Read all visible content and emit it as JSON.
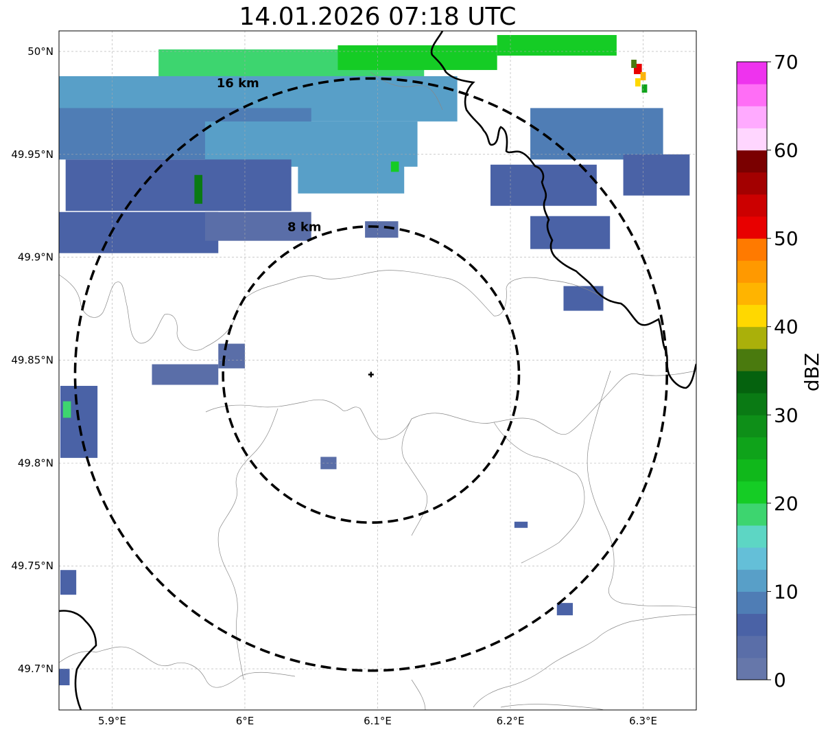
{
  "title": "14.01.2026 07:18 UTC",
  "map": {
    "lon_ticks": [
      "5.9°E",
      "6°E",
      "6.1°E",
      "6.2°E",
      "6.3°E"
    ],
    "lat_ticks": [
      "50°N",
      "49.95°N",
      "49.9°N",
      "49.85°N",
      "49.8°N",
      "49.75°N",
      "49.7°N"
    ],
    "lon_range": [
      5.86,
      6.34
    ],
    "lat_range": [
      49.68,
      50.01
    ],
    "radar_site": {
      "lon": 6.095,
      "lat": 49.843
    },
    "range_rings": [
      {
        "label": "8 km",
        "radius_km": 8
      },
      {
        "label": "16 km",
        "radius_km": 16
      }
    ]
  },
  "colorbar": {
    "label": "dBZ",
    "ticks": [
      "0",
      "10",
      "20",
      "30",
      "40",
      "50",
      "60",
      "70"
    ],
    "min": 0,
    "max": 70,
    "step": 2.5,
    "colors": [
      "#6677aa",
      "#5a6ea8",
      "#4a62a6",
      "#4f7db5",
      "#589fc8",
      "#64bfd8",
      "#5dd6c4",
      "#3dd56f",
      "#15cc25",
      "#10b81b",
      "#0fa31a",
      "#0e8f18",
      "#0a7a14",
      "#05620e",
      "#4a7a0e",
      "#aab00a",
      "#ffd800",
      "#ffb400",
      "#ff9900",
      "#ff7a00",
      "#e80000",
      "#cc0000",
      "#a30000",
      "#7a0000",
      "#ffd6ff",
      "#ffaaff",
      "#ff6ef6",
      "#ee33ee"
    ]
  },
  "echoes": [
    {
      "lon": 6.035,
      "lat": 49.993,
      "w": 0.2,
      "h": 0.016,
      "dbz": 18
    },
    {
      "lon": 6.13,
      "lat": 49.997,
      "w": 0.12,
      "h": 0.012,
      "dbz": 22
    },
    {
      "lon": 6.235,
      "lat": 50.003,
      "w": 0.09,
      "h": 0.01,
      "dbz": 21
    },
    {
      "lon": 6.0,
      "lat": 49.977,
      "w": 0.32,
      "h": 0.022,
      "dbz": 12
    },
    {
      "lon": 5.955,
      "lat": 49.96,
      "w": 0.19,
      "h": 0.025,
      "dbz": 8
    },
    {
      "lon": 6.05,
      "lat": 49.955,
      "w": 0.16,
      "h": 0.022,
      "dbz": 11
    },
    {
      "lon": 5.95,
      "lat": 49.935,
      "w": 0.17,
      "h": 0.025,
      "dbz": 6
    },
    {
      "lon": 6.08,
      "lat": 49.94,
      "w": 0.08,
      "h": 0.018,
      "dbz": 10
    },
    {
      "lon": 5.92,
      "lat": 49.912,
      "w": 0.12,
      "h": 0.02,
      "dbz": 5
    },
    {
      "lon": 6.01,
      "lat": 49.915,
      "w": 0.08,
      "h": 0.014,
      "dbz": 4
    },
    {
      "lon": 6.265,
      "lat": 49.96,
      "w": 0.1,
      "h": 0.025,
      "dbz": 9
    },
    {
      "lon": 6.225,
      "lat": 49.935,
      "w": 0.08,
      "h": 0.02,
      "dbz": 5
    },
    {
      "lon": 6.245,
      "lat": 49.912,
      "w": 0.06,
      "h": 0.016,
      "dbz": 5
    },
    {
      "lon": 6.255,
      "lat": 49.88,
      "w": 0.03,
      "h": 0.012,
      "dbz": 6
    },
    {
      "lon": 6.31,
      "lat": 49.94,
      "w": 0.05,
      "h": 0.02,
      "dbz": 6
    },
    {
      "lon": 5.955,
      "lat": 49.843,
      "w": 0.05,
      "h": 0.01,
      "dbz": 4
    },
    {
      "lon": 5.99,
      "lat": 49.852,
      "w": 0.02,
      "h": 0.012,
      "dbz": 4
    },
    {
      "lon": 5.875,
      "lat": 49.82,
      "w": 0.028,
      "h": 0.035,
      "dbz": 6
    },
    {
      "lon": 6.063,
      "lat": 49.8,
      "w": 0.012,
      "h": 0.006,
      "dbz": 4
    },
    {
      "lon": 6.103,
      "lat": 49.9135,
      "w": 0.025,
      "h": 0.008,
      "dbz": 4
    },
    {
      "lon": 6.241,
      "lat": 49.729,
      "w": 0.012,
      "h": 0.006,
      "dbz": 6
    },
    {
      "lon": 6.208,
      "lat": 49.77,
      "w": 0.01,
      "h": 0.003,
      "dbz": 6
    },
    {
      "lon": 5.867,
      "lat": 49.742,
      "w": 0.012,
      "h": 0.012,
      "dbz": 5
    },
    {
      "lon": 5.864,
      "lat": 49.696,
      "w": 0.008,
      "h": 0.008,
      "dbz": 5
    },
    {
      "lon": 5.965,
      "lat": 49.933,
      "w": 0.006,
      "h": 0.014,
      "dbz": 30
    },
    {
      "lon": 6.113,
      "lat": 49.944,
      "w": 0.006,
      "h": 0.005,
      "dbz": 22
    },
    {
      "lon": 5.866,
      "lat": 49.826,
      "w": 0.006,
      "h": 0.008,
      "dbz": 18
    },
    {
      "lon": 6.296,
      "lat": 49.9915,
      "w": 0.006,
      "h": 0.005,
      "dbz": 52
    },
    {
      "lon": 6.293,
      "lat": 49.994,
      "w": 0.004,
      "h": 0.004,
      "dbz": 37
    },
    {
      "lon": 6.3,
      "lat": 49.988,
      "w": 0.004,
      "h": 0.004,
      "dbz": 44
    },
    {
      "lon": 6.296,
      "lat": 49.985,
      "w": 0.004,
      "h": 0.004,
      "dbz": 41
    },
    {
      "lon": 6.301,
      "lat": 49.982,
      "w": 0.004,
      "h": 0.004,
      "dbz": 25
    }
  ]
}
